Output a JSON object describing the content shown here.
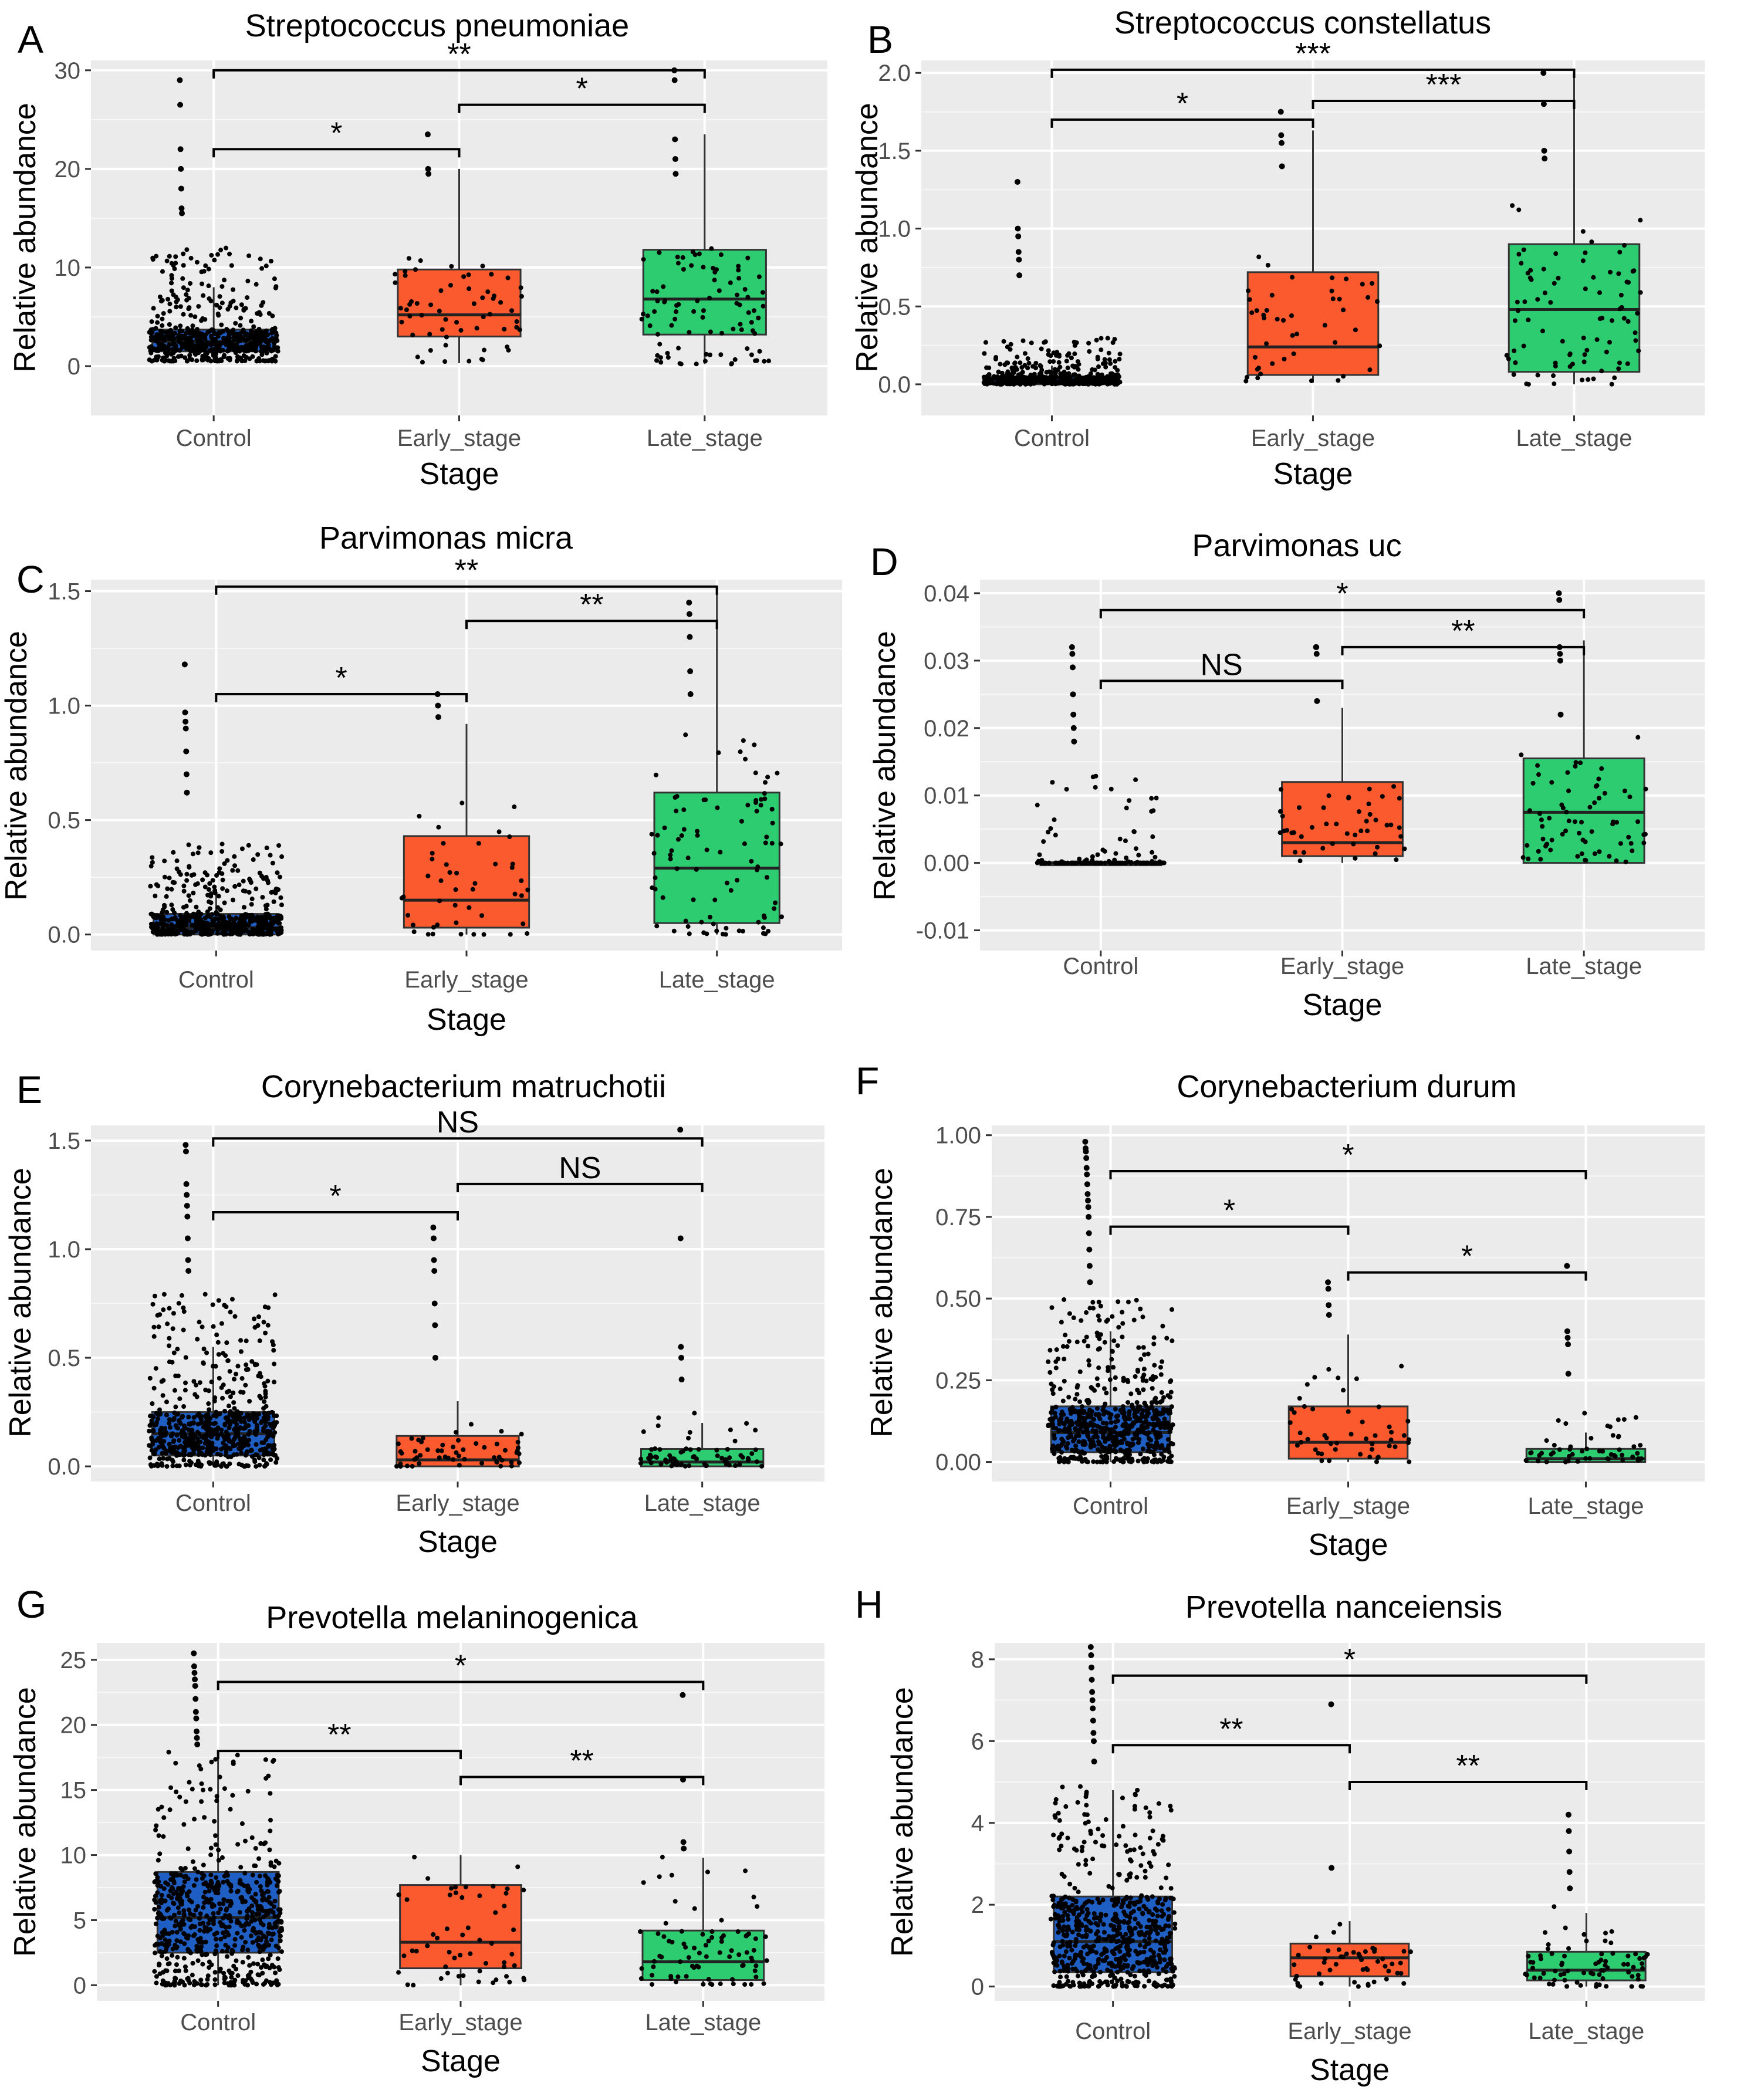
{
  "chart_data": [
    {
      "type": "box",
      "panel_label": "A",
      "title": "Streptococcus pneumoniae",
      "xlabel": "Stage",
      "ylabel": "Relative abundance",
      "ylim": [
        -5,
        31
      ],
      "yticks": [
        0,
        10,
        20,
        30
      ],
      "ytick_labels": [
        "0",
        "10",
        "20",
        "30"
      ],
      "categories": [
        "Control",
        "Early_stage",
        "Late_stage"
      ],
      "boxes": [
        {
          "q1": 1.5,
          "median": 2.5,
          "q3": 3.7,
          "lower": 0.5,
          "upper": 8,
          "fill": "#1f5fc4",
          "n": 600,
          "jitter_max": 12
        },
        {
          "q1": 3,
          "median": 5.2,
          "q3": 9.8,
          "lower": 0.3,
          "upper": 20,
          "fill": "#fa5a2d",
          "n": 60,
          "jitter_max": 11
        },
        {
          "q1": 3.2,
          "median": 6.8,
          "q3": 11.8,
          "lower": 0.2,
          "upper": 23.5,
          "fill": "#2ecc71",
          "n": 90,
          "jitter_max": 14
        }
      ],
      "outliers": [
        [
          0,
          29
        ],
        [
          0,
          26.5
        ],
        [
          0,
          22
        ],
        [
          0,
          20
        ],
        [
          0,
          18
        ],
        [
          0,
          16
        ],
        [
          0,
          15.5
        ],
        [
          1,
          23.5
        ],
        [
          1,
          20
        ],
        [
          1,
          19.5
        ],
        [
          2,
          30
        ],
        [
          2,
          29
        ],
        [
          2,
          23
        ],
        [
          2,
          21
        ],
        [
          2,
          19.5
        ]
      ],
      "comparisons": [
        {
          "from": 0,
          "to": 1,
          "y": 22,
          "label": "*"
        },
        {
          "from": 1,
          "to": 2,
          "y": 26.5,
          "label": "*"
        },
        {
          "from": 0,
          "to": 2,
          "y": 30,
          "label": "**"
        }
      ]
    },
    {
      "type": "box",
      "panel_label": "B",
      "title": "Streptococcus constellatus",
      "xlabel": "Stage",
      "ylabel": "Relative abundance",
      "ylim": [
        -0.2,
        2.08
      ],
      "yticks": [
        0,
        0.5,
        1.0,
        1.5,
        2.0
      ],
      "ytick_labels": [
        "0.0",
        "0.5",
        "1.0",
        "1.5",
        "2.0"
      ],
      "categories": [
        "Control",
        "Early_stage",
        "Late_stage"
      ],
      "boxes": [
        {
          "q1": 0.0,
          "median": 0.01,
          "q3": 0.05,
          "lower": 0,
          "upper": 0.12,
          "fill": "#1f5fc4",
          "n": 500,
          "jitter_max": 0.3
        },
        {
          "q1": 0.06,
          "median": 0.24,
          "q3": 0.72,
          "lower": 0.01,
          "upper": 1.63,
          "fill": "#fa5a2d",
          "n": 45,
          "jitter_max": 0.9
        },
        {
          "q1": 0.08,
          "median": 0.48,
          "q3": 0.9,
          "lower": 0.0,
          "upper": 2.0,
          "fill": "#2ecc71",
          "n": 85,
          "jitter_max": 1.2
        }
      ],
      "outliers": [
        [
          0,
          1.3
        ],
        [
          0,
          1.0
        ],
        [
          0,
          0.95
        ],
        [
          0,
          0.85
        ],
        [
          0,
          0.8
        ],
        [
          0,
          0.7
        ],
        [
          1,
          1.75
        ],
        [
          1,
          1.6
        ],
        [
          1,
          1.55
        ],
        [
          1,
          1.4
        ],
        [
          2,
          2.0
        ],
        [
          2,
          1.8
        ],
        [
          2,
          1.5
        ],
        [
          2,
          1.45
        ]
      ],
      "comparisons": [
        {
          "from": 0,
          "to": 1,
          "y": 1.7,
          "label": "*"
        },
        {
          "from": 1,
          "to": 2,
          "y": 1.82,
          "label": "***"
        },
        {
          "from": 0,
          "to": 2,
          "y": 2.02,
          "label": "***"
        }
      ]
    },
    {
      "type": "box",
      "panel_label": "C",
      "title": "Parvimonas micra",
      "xlabel": "Stage",
      "ylabel": "Relative abundance",
      "ylim": [
        -0.07,
        1.55
      ],
      "yticks": [
        0,
        0.5,
        1.0,
        1.5
      ],
      "ytick_labels": [
        "0.0",
        "0.5",
        "1.0",
        "1.5"
      ],
      "categories": [
        "Control",
        "Early_stage",
        "Late_stage"
      ],
      "boxes": [
        {
          "q1": 0.0,
          "median": 0.03,
          "q3": 0.09,
          "lower": 0,
          "upper": 0.2,
          "fill": "#1f5fc4",
          "n": 550,
          "jitter_max": 0.4
        },
        {
          "q1": 0.03,
          "median": 0.15,
          "q3": 0.43,
          "lower": 0.0,
          "upper": 0.92,
          "fill": "#fa5a2d",
          "n": 45,
          "jitter_max": 0.6
        },
        {
          "q1": 0.05,
          "median": 0.29,
          "q3": 0.62,
          "lower": 0.0,
          "upper": 1.5,
          "fill": "#2ecc71",
          "n": 90,
          "jitter_max": 0.9
        }
      ],
      "outliers": [
        [
          0,
          1.18
        ],
        [
          0,
          0.97
        ],
        [
          0,
          0.93
        ],
        [
          0,
          0.9
        ],
        [
          0,
          0.8
        ],
        [
          0,
          0.7
        ],
        [
          0,
          0.62
        ],
        [
          1,
          1.05
        ],
        [
          1,
          1.0
        ],
        [
          1,
          0.95
        ],
        [
          2,
          1.45
        ],
        [
          2,
          1.4
        ],
        [
          2,
          1.3
        ],
        [
          2,
          1.15
        ],
        [
          2,
          1.05
        ]
      ],
      "comparisons": [
        {
          "from": 0,
          "to": 1,
          "y": 1.05,
          "label": "*"
        },
        {
          "from": 1,
          "to": 2,
          "y": 1.37,
          "label": "**"
        },
        {
          "from": 0,
          "to": 2,
          "y": 1.52,
          "label": "**"
        }
      ]
    },
    {
      "type": "box",
      "panel_label": "D",
      "title": "Parvimonas uc",
      "xlabel": "Stage",
      "ylabel": "Relative abundance",
      "ylim": [
        -0.013,
        0.042
      ],
      "yticks": [
        -0.01,
        0,
        0.01,
        0.02,
        0.03,
        0.04
      ],
      "ytick_labels": [
        "-0.01",
        "0.00",
        "0.01",
        "0.02",
        "0.03",
        "0.04"
      ],
      "categories": [
        "Control",
        "Early_stage",
        "Late_stage"
      ],
      "boxes": [
        {
          "q1": 0.0,
          "median": 0.0,
          "q3": 0.0,
          "lower": 0,
          "upper": 0.0,
          "fill": "#1f5fc4",
          "n": 130,
          "jitter_max": 0.013
        },
        {
          "q1": 0.001,
          "median": 0.003,
          "q3": 0.012,
          "lower": 0.0,
          "upper": 0.023,
          "fill": "#fa5a2d",
          "n": 45,
          "jitter_max": 0.014
        },
        {
          "q1": 0.0,
          "median": 0.0075,
          "q3": 0.0155,
          "lower": 0.0,
          "upper": 0.033,
          "fill": "#2ecc71",
          "n": 70,
          "jitter_max": 0.022
        }
      ],
      "outliers": [
        [
          0,
          0.032
        ],
        [
          0,
          0.031
        ],
        [
          0,
          0.029
        ],
        [
          0,
          0.025
        ],
        [
          0,
          0.022
        ],
        [
          0,
          0.02
        ],
        [
          0,
          0.018
        ],
        [
          1,
          0.032
        ],
        [
          1,
          0.032
        ],
        [
          1,
          0.031
        ],
        [
          1,
          0.024
        ],
        [
          2,
          0.04
        ],
        [
          2,
          0.039
        ],
        [
          2,
          0.032
        ],
        [
          2,
          0.031
        ],
        [
          2,
          0.03
        ],
        [
          2,
          0.022
        ]
      ],
      "comparisons": [
        {
          "from": 0,
          "to": 1,
          "y": 0.027,
          "label": "NS"
        },
        {
          "from": 1,
          "to": 2,
          "y": 0.032,
          "label": "**"
        },
        {
          "from": 0,
          "to": 2,
          "y": 0.0375,
          "label": "*"
        }
      ]
    },
    {
      "type": "box",
      "panel_label": "E",
      "title": "Corynebacterium matruchotii",
      "xlabel": "Stage",
      "ylabel": "Relative abundance",
      "ylim": [
        -0.07,
        1.57
      ],
      "yticks": [
        0,
        0.5,
        1.0,
        1.5
      ],
      "ytick_labels": [
        "0.0",
        "0.5",
        "1.0",
        "1.5"
      ],
      "categories": [
        "Control",
        "Early_stage",
        "Late_stage"
      ],
      "boxes": [
        {
          "q1": 0.05,
          "median": 0.15,
          "q3": 0.25,
          "lower": 0,
          "upper": 0.55,
          "fill": "#1f5fc4",
          "n": 650,
          "jitter_max": 0.8
        },
        {
          "q1": 0.0,
          "median": 0.03,
          "q3": 0.14,
          "lower": 0.0,
          "upper": 0.3,
          "fill": "#fa5a2d",
          "n": 55,
          "jitter_max": 0.2
        },
        {
          "q1": 0.0,
          "median": 0.02,
          "q3": 0.08,
          "lower": 0.0,
          "upper": 0.2,
          "fill": "#2ecc71",
          "n": 70,
          "jitter_max": 0.25
        }
      ],
      "outliers": [
        [
          0,
          1.48
        ],
        [
          0,
          1.45
        ],
        [
          0,
          1.3
        ],
        [
          0,
          1.25
        ],
        [
          0,
          1.2
        ],
        [
          0,
          1.15
        ],
        [
          0,
          1.05
        ],
        [
          0,
          0.95
        ],
        [
          0,
          0.9
        ],
        [
          1,
          1.1
        ],
        [
          1,
          1.05
        ],
        [
          1,
          0.95
        ],
        [
          1,
          0.9
        ],
        [
          1,
          0.75
        ],
        [
          1,
          0.65
        ],
        [
          1,
          0.5
        ],
        [
          2,
          1.55
        ],
        [
          2,
          1.05
        ],
        [
          2,
          0.55
        ],
        [
          2,
          0.5
        ],
        [
          2,
          0.4
        ]
      ],
      "comparisons": [
        {
          "from": 0,
          "to": 1,
          "y": 1.17,
          "label": "*"
        },
        {
          "from": 1,
          "to": 2,
          "y": 1.3,
          "label": "NS"
        },
        {
          "from": 0,
          "to": 2,
          "y": 1.51,
          "label": "NS"
        }
      ]
    },
    {
      "type": "box",
      "panel_label": "F",
      "title": "Corynebacterium durum",
      "xlabel": "Stage",
      "ylabel": "Relative abundance",
      "ylim": [
        -0.06,
        1.03
      ],
      "yticks": [
        0,
        0.25,
        0.5,
        0.75,
        1.0
      ],
      "ytick_labels": [
        "0.00",
        "0.25",
        "0.50",
        "0.75",
        "1.00"
      ],
      "categories": [
        "Control",
        "Early_stage",
        "Late_stage"
      ],
      "boxes": [
        {
          "q1": 0.03,
          "median": 0.09,
          "q3": 0.17,
          "lower": 0,
          "upper": 0.4,
          "fill": "#1f5fc4",
          "n": 650,
          "jitter_max": 0.5
        },
        {
          "q1": 0.01,
          "median": 0.06,
          "q3": 0.17,
          "lower": 0.0,
          "upper": 0.39,
          "fill": "#fa5a2d",
          "n": 50,
          "jitter_max": 0.3
        },
        {
          "q1": 0.0,
          "median": 0.01,
          "q3": 0.04,
          "lower": 0.0,
          "upper": 0.09,
          "fill": "#2ecc71",
          "n": 55,
          "jitter_max": 0.15
        }
      ],
      "outliers": [
        [
          0,
          0.98
        ],
        [
          0,
          0.96
        ],
        [
          0,
          0.95
        ],
        [
          0,
          0.93
        ],
        [
          0,
          0.9
        ],
        [
          0,
          0.88
        ],
        [
          0,
          0.85
        ],
        [
          0,
          0.82
        ],
        [
          0,
          0.8
        ],
        [
          0,
          0.78
        ],
        [
          0,
          0.75
        ],
        [
          0,
          0.7
        ],
        [
          0,
          0.65
        ],
        [
          0,
          0.6
        ],
        [
          0,
          0.55
        ],
        [
          1,
          0.55
        ],
        [
          1,
          0.53
        ],
        [
          1,
          0.48
        ],
        [
          1,
          0.45
        ],
        [
          2,
          0.6
        ],
        [
          2,
          0.4
        ],
        [
          2,
          0.38
        ],
        [
          2,
          0.36
        ],
        [
          2,
          0.27
        ]
      ],
      "comparisons": [
        {
          "from": 0,
          "to": 1,
          "y": 0.72,
          "label": "*"
        },
        {
          "from": 1,
          "to": 2,
          "y": 0.58,
          "label": "*"
        },
        {
          "from": 0,
          "to": 2,
          "y": 0.89,
          "label": "*"
        }
      ]
    },
    {
      "type": "box",
      "panel_label": "G",
      "title": "Prevotella melaninogenica",
      "xlabel": "Stage",
      "ylabel": "Relative abundance",
      "ylim": [
        -1.2,
        26.3
      ],
      "yticks": [
        0,
        5,
        10,
        15,
        20,
        25
      ],
      "ytick_labels": [
        "0",
        "5",
        "10",
        "15",
        "20",
        "25"
      ],
      "categories": [
        "Control",
        "Early_stage",
        "Late_stage"
      ],
      "boxes": [
        {
          "q1": 2.5,
          "median": 5.2,
          "q3": 8.7,
          "lower": 0,
          "upper": 17.5,
          "fill": "#1f5fc4",
          "n": 650,
          "jitter_max": 18
        },
        {
          "q1": 1.3,
          "median": 3.3,
          "q3": 7.7,
          "lower": 0.0,
          "upper": 10,
          "fill": "#fa5a2d",
          "n": 55,
          "jitter_max": 10
        },
        {
          "q1": 0.4,
          "median": 1.8,
          "q3": 4.2,
          "lower": 0.0,
          "upper": 9.8,
          "fill": "#2ecc71",
          "n": 80,
          "jitter_max": 10
        }
      ],
      "outliers": [
        [
          0,
          25.5
        ],
        [
          0,
          24.5
        ],
        [
          0,
          24
        ],
        [
          0,
          23.5
        ],
        [
          0,
          23
        ],
        [
          0,
          22
        ],
        [
          0,
          21
        ],
        [
          0,
          20.5
        ],
        [
          0,
          19.5
        ],
        [
          0,
          19
        ],
        [
          0,
          18.5
        ],
        [
          2,
          22.3
        ],
        [
          2,
          15.8
        ],
        [
          2,
          11
        ],
        [
          2,
          10.5
        ]
      ],
      "comparisons": [
        {
          "from": 0,
          "to": 1,
          "y": 18,
          "label": "**"
        },
        {
          "from": 1,
          "to": 2,
          "y": 16,
          "label": "**"
        },
        {
          "from": 0,
          "to": 2,
          "y": 23.3,
          "label": "*"
        }
      ]
    },
    {
      "type": "box",
      "panel_label": "H",
      "title": "Prevotella nanceiensis",
      "xlabel": "Stage",
      "ylabel": "Relative abundance",
      "ylim": [
        -0.35,
        8.4
      ],
      "yticks": [
        0,
        2,
        4,
        6,
        8
      ],
      "ytick_labels": [
        "0",
        "2",
        "4",
        "6",
        "8"
      ],
      "categories": [
        "Control",
        "Early_stage",
        "Late_stage"
      ],
      "boxes": [
        {
          "q1": 0.35,
          "median": 1.1,
          "q3": 2.2,
          "lower": 0,
          "upper": 4.8,
          "fill": "#1f5fc4",
          "n": 650,
          "jitter_max": 5
        },
        {
          "q1": 0.25,
          "median": 0.7,
          "q3": 1.05,
          "lower": 0.0,
          "upper": 1.6,
          "fill": "#fa5a2d",
          "n": 50,
          "jitter_max": 1.7
        },
        {
          "q1": 0.15,
          "median": 0.4,
          "q3": 0.85,
          "lower": 0.0,
          "upper": 1.8,
          "fill": "#2ecc71",
          "n": 75,
          "jitter_max": 2
        }
      ],
      "outliers": [
        [
          0,
          8.3
        ],
        [
          0,
          8.1
        ],
        [
          0,
          7.8
        ],
        [
          0,
          7.5
        ],
        [
          0,
          7.2
        ],
        [
          0,
          7.0
        ],
        [
          0,
          6.8
        ],
        [
          0,
          6.5
        ],
        [
          0,
          6.2
        ],
        [
          0,
          6.0
        ],
        [
          0,
          5.5
        ],
        [
          1,
          6.9
        ],
        [
          1,
          2.9
        ],
        [
          2,
          4.2
        ],
        [
          2,
          3.8
        ],
        [
          2,
          3.3
        ],
        [
          2,
          2.8
        ],
        [
          2,
          2.4
        ]
      ],
      "comparisons": [
        {
          "from": 0,
          "to": 1,
          "y": 5.9,
          "label": "**"
        },
        {
          "from": 1,
          "to": 2,
          "y": 5.0,
          "label": "**"
        },
        {
          "from": 0,
          "to": 2,
          "y": 7.6,
          "label": "*"
        }
      ]
    }
  ]
}
